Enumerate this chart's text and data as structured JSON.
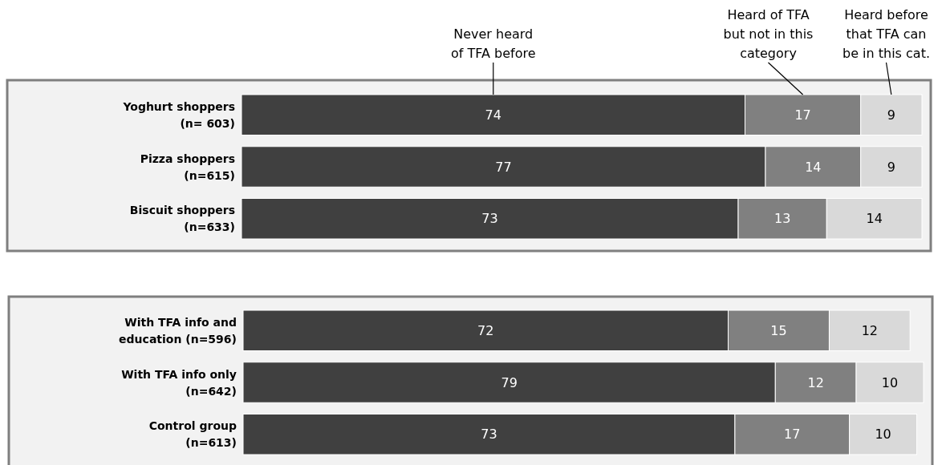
{
  "chart_data": [
    {
      "type": "bar",
      "orientation": "horizontal",
      "stacked": true,
      "data_labels": true,
      "legend": "top",
      "tick_labels": "y",
      "xlim": [
        0,
        100
      ],
      "categories": [
        "Yoghurt shoppers\n(n= 603)",
        "Pizza shoppers\n(n=615)",
        "Biscuit shoppers\n(n=633)"
      ],
      "series": [
        {
          "name": "Never heard\nof TFA before",
          "color": "#404040",
          "values": [
            74,
            77,
            73
          ]
        },
        {
          "name": "Heard of TFA\nbut not in this\ncategory",
          "color": "#808080",
          "values": [
            17,
            14,
            13
          ]
        },
        {
          "name": "Heard before\nthat TFA can\nbe in this cat.",
          "color": "#d9d9d9",
          "values": [
            9,
            9,
            14
          ]
        }
      ]
    },
    {
      "type": "bar",
      "orientation": "horizontal",
      "stacked": true,
      "data_labels": true,
      "tick_labels": "y",
      "xlim": [
        0,
        101
      ],
      "categories": [
        "With TFA info and\neducation (n=596)",
        "With TFA info only\n(n=642)",
        "Control group\n(n=613)"
      ],
      "series": [
        {
          "color": "#404040",
          "values": [
            72,
            79,
            73
          ]
        },
        {
          "color": "#808080",
          "values": [
            15,
            12,
            17
          ]
        },
        {
          "color": "#d9d9d9",
          "values": [
            12,
            10,
            10
          ]
        }
      ]
    }
  ]
}
